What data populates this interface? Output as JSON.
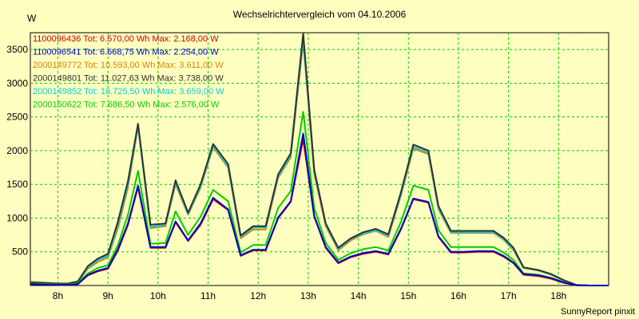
{
  "chart_data": {
    "type": "line",
    "title": "Wechselrichtervergleich vom 04.10.2006",
    "ylabel": "W",
    "xlabel": "",
    "ylim": [
      0,
      3750
    ],
    "xlim": [
      7.45,
      19.0
    ],
    "yticks": [
      500,
      1000,
      1500,
      2000,
      2500,
      3000,
      3500
    ],
    "xticks": [
      8,
      9,
      10,
      11,
      12,
      13,
      14,
      15,
      16,
      17,
      18
    ],
    "xtick_labels": [
      "8h",
      "9h",
      "10h",
      "11h",
      "12h",
      "13h",
      "14h",
      "15h",
      "16h",
      "17h",
      "18h"
    ],
    "grid": true,
    "legend_position": "top-left",
    "footer": "SunnyReport pinxit",
    "x": [
      7.45,
      7.75,
      8.0,
      8.2,
      8.4,
      8.6,
      8.8,
      9.0,
      9.2,
      9.4,
      9.6,
      9.85,
      10.15,
      10.35,
      10.6,
      10.85,
      11.1,
      11.4,
      11.65,
      11.9,
      12.15,
      12.4,
      12.65,
      12.9,
      13.12,
      13.35,
      13.6,
      13.85,
      14.1,
      14.35,
      14.6,
      14.85,
      15.1,
      15.4,
      15.6,
      15.85,
      16.1,
      16.4,
      16.7,
      16.9,
      17.1,
      17.3,
      17.6,
      17.85,
      18.1,
      18.35,
      18.6,
      18.8,
      19.0
    ],
    "series": [
      {
        "name": "1100096436 Tot: 6.570,00 Wh Max: 2.168,00 W",
        "color": "#cc0000",
        "values": [
          20,
          15,
          10,
          10,
          20,
          150,
          210,
          250,
          520,
          900,
          1460,
          560,
          560,
          940,
          660,
          900,
          1280,
          1120,
          440,
          520,
          520,
          1000,
          1240,
          2168,
          1020,
          560,
          330,
          420,
          470,
          500,
          460,
          830,
          1280,
          1230,
          720,
          490,
          490,
          500,
          500,
          430,
          330,
          160,
          140,
          100,
          40,
          5,
          0,
          0,
          0
        ]
      },
      {
        "name": "1100096541 Tot: 6.668,75 Wh Max: 2.254,00 W",
        "color": "#0000cc",
        "values": [
          20,
          15,
          10,
          10,
          20,
          160,
          220,
          260,
          540,
          920,
          1480,
          570,
          570,
          950,
          670,
          920,
          1300,
          1130,
          450,
          530,
          530,
          1010,
          1250,
          2254,
          1030,
          570,
          340,
          430,
          480,
          510,
          470,
          840,
          1290,
          1240,
          730,
          500,
          500,
          510,
          510,
          440,
          340,
          170,
          150,
          110,
          45,
          5,
          0,
          0,
          0
        ]
      },
      {
        "name": "2000149772 Tot: 10.593,00 Wh Max: 3.611,00 W",
        "color": "#e08000",
        "values": [
          40,
          30,
          20,
          20,
          50,
          250,
          350,
          420,
          850,
          1450,
          2350,
          850,
          880,
          1500,
          1050,
          1450,
          2050,
          1750,
          700,
          830,
          830,
          1600,
          1900,
          3611,
          1650,
          880,
          520,
          670,
          760,
          810,
          720,
          1330,
          2030,
          1950,
          1130,
          780,
          780,
          780,
          780,
          680,
          520,
          260,
          220,
          160,
          70,
          10,
          0,
          0,
          0
        ]
      },
      {
        "name": "2000149801 Tot: 11.027,63 Wh Max: 3.738,00 W",
        "color": "#303030",
        "values": [
          50,
          40,
          30,
          30,
          60,
          290,
          400,
          470,
          950,
          1550,
          2400,
          900,
          920,
          1560,
          1080,
          1500,
          2100,
          1800,
          740,
          880,
          880,
          1650,
          1960,
          3738,
          1720,
          920,
          560,
          700,
          790,
          840,
          760,
          1380,
          2090,
          2000,
          1180,
          810,
          810,
          810,
          810,
          710,
          560,
          270,
          230,
          170,
          80,
          10,
          0,
          0,
          0
        ]
      },
      {
        "name": "2000149852 Tot: 10.725,50 Wh Max: 3.659,00 W",
        "color": "#00d0e0",
        "values": [
          45,
          35,
          25,
          25,
          55,
          270,
          380,
          440,
          900,
          1500,
          2370,
          870,
          900,
          1530,
          1060,
          1470,
          2070,
          1770,
          720,
          860,
          860,
          1620,
          1930,
          3659,
          1690,
          900,
          540,
          690,
          770,
          820,
          740,
          1350,
          2060,
          1970,
          1150,
          790,
          790,
          790,
          790,
          690,
          540,
          265,
          225,
          165,
          75,
          10,
          0,
          0,
          0
        ]
      },
      {
        "name": "2000150622 Tot: 7.686,50 Wh Max: 2.576,00 W",
        "color": "#00cc00",
        "values": [
          30,
          25,
          15,
          15,
          35,
          180,
          260,
          300,
          600,
          1050,
          1700,
          620,
          630,
          1100,
          750,
          1020,
          1420,
          1250,
          490,
          600,
          600,
          1150,
          1400,
          2576,
          1150,
          630,
          380,
          480,
          540,
          570,
          520,
          940,
          1480,
          1420,
          820,
          570,
          570,
          570,
          570,
          490,
          380,
          180,
          160,
          115,
          50,
          5,
          0,
          0,
          0
        ]
      }
    ]
  }
}
